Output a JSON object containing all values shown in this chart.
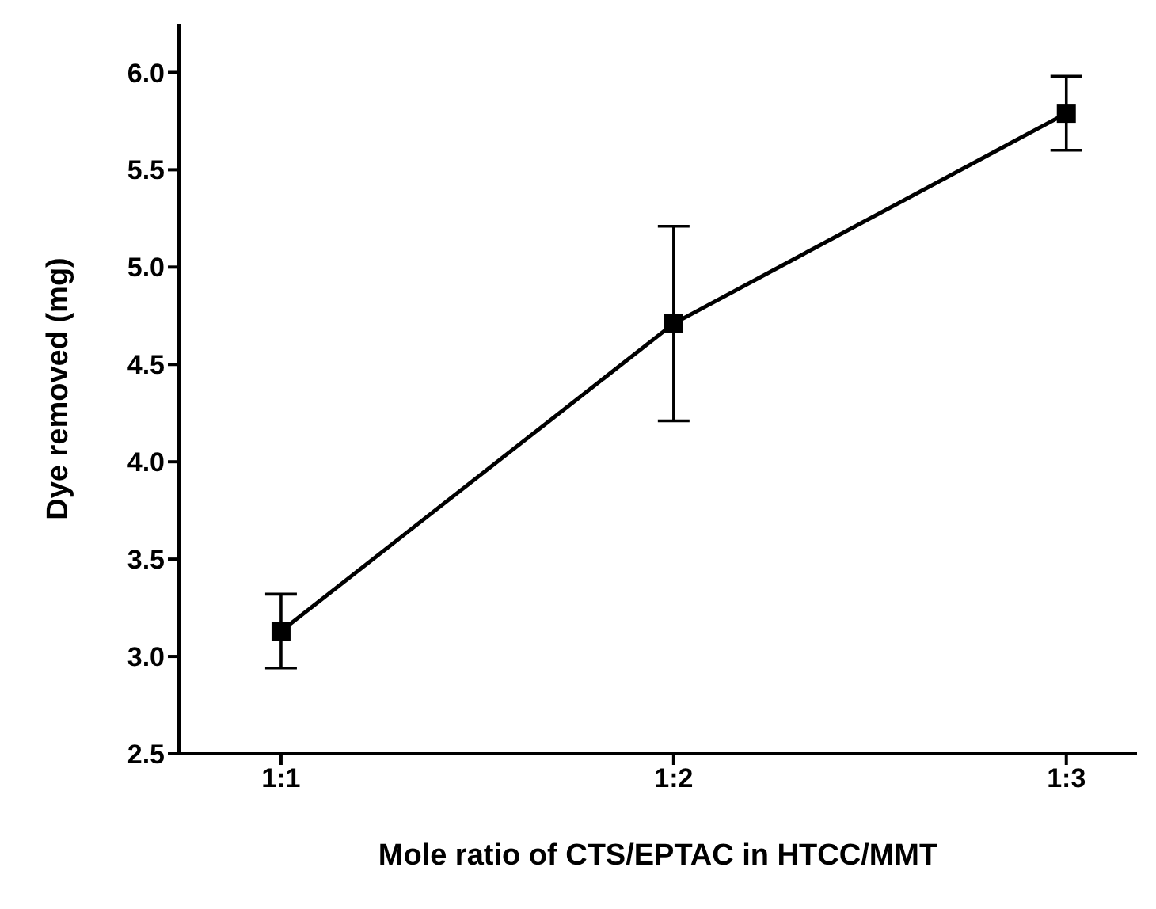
{
  "chart_data": {
    "type": "line",
    "xlabel": "Mole ratio of CTS/EPTAC in HTCC/MMT",
    "ylabel": "Dye removed (mg)",
    "categories": [
      "1:1",
      "1:2",
      "1:3"
    ],
    "series": [
      {
        "color": "#000000",
        "values": [
          3.13,
          4.71,
          5.79
        ],
        "errors": [
          0.19,
          0.5,
          0.19
        ]
      }
    ],
    "ylim": [
      2.5,
      6.25
    ],
    "yticks": [
      2.5,
      {
        "value": 3,
        "label": "3.0"
      },
      3.5,
      {
        "value": 4,
        "label": "4.0"
      },
      4.5,
      {
        "value": 5,
        "label": "5.0"
      },
      5.5,
      {
        "value": 6,
        "label": "6.0"
      }
    ],
    "marker": "square",
    "line_style": "solid",
    "grid": false,
    "legend": false
  }
}
